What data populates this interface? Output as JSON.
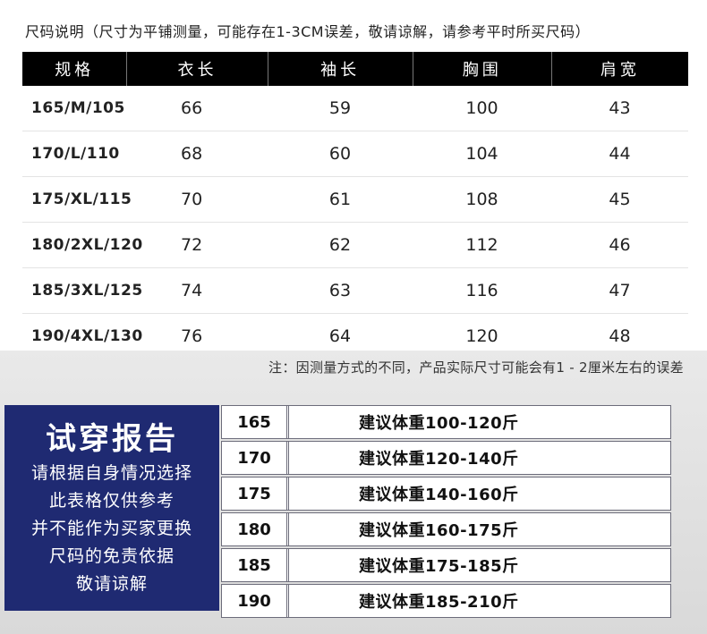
{
  "header_note": "尺码说明（尺寸为平铺测量，可能存在1-3CM误差，敬请谅解，请参考平时所买尺码）",
  "size_table": {
    "columns": [
      "规格",
      "衣长",
      "袖长",
      "胸围",
      "肩宽"
    ],
    "rows": [
      {
        "spec": "165/M/105",
        "length": "66",
        "sleeve": "59",
        "chest": "100",
        "shoulder": "43"
      },
      {
        "spec": "170/L/110",
        "length": "68",
        "sleeve": "60",
        "chest": "104",
        "shoulder": "44"
      },
      {
        "spec": "175/XL/115",
        "length": "70",
        "sleeve": "61",
        "chest": "108",
        "shoulder": "45"
      },
      {
        "spec": "180/2XL/120",
        "length": "72",
        "sleeve": "62",
        "chest": "112",
        "shoulder": "46"
      },
      {
        "spec": "185/3XL/125",
        "length": "74",
        "sleeve": "63",
        "chest": "116",
        "shoulder": "47"
      },
      {
        "spec": "190/4XL/130",
        "length": "76",
        "sleeve": "64",
        "chest": "120",
        "shoulder": "48"
      }
    ]
  },
  "footnote": "注：因测量方式的不同，产品实际尺寸可能会有1 - 2厘米左右的误差",
  "report": {
    "title": "试穿报告",
    "lines": [
      "请根据自身情况选择",
      "此表格仅供参考",
      "并不能作为买家更换",
      "尺码的免责依据",
      "敬请谅解"
    ]
  },
  "weight_table": [
    {
      "size": "165",
      "advice": "建议体重100-120斤"
    },
    {
      "size": "170",
      "advice": "建议体重120-140斤"
    },
    {
      "size": "175",
      "advice": "建议体重140-160斤"
    },
    {
      "size": "180",
      "advice": "建议体重160-175斤"
    },
    {
      "size": "185",
      "advice": "建议体重175-185斤"
    },
    {
      "size": "190",
      "advice": "建议体重185-210斤"
    }
  ],
  "colors": {
    "header_bg": "#000000",
    "report_bg": "#1f2a72",
    "lower_bg": "#e0e0e0"
  }
}
